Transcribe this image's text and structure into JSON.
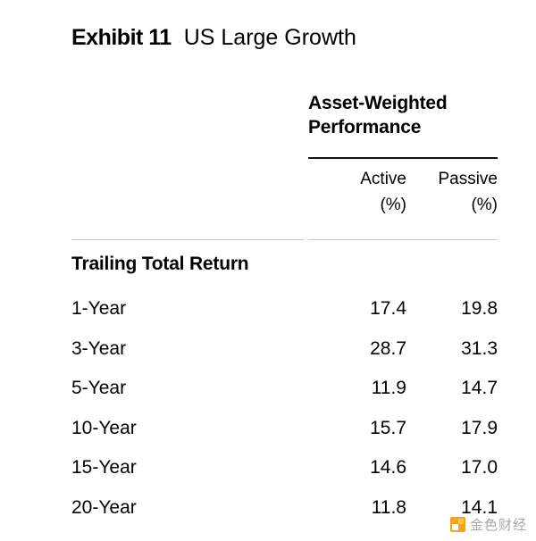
{
  "title": {
    "exhibit": "Exhibit 11",
    "name": "US Large Growth"
  },
  "table": {
    "group_header": "Asset-Weighted Performance",
    "columns": [
      {
        "label": "Active",
        "unit": "(%)"
      },
      {
        "label": "Passive",
        "unit": "(%)"
      }
    ],
    "section": "Trailing Total Return",
    "rows": [
      {
        "label": "1-Year",
        "active": "17.4",
        "passive": "19.8"
      },
      {
        "label": "3-Year",
        "active": "28.7",
        "passive": "31.3"
      },
      {
        "label": "5-Year",
        "active": "11.9",
        "passive": "14.7"
      },
      {
        "label": "10-Year",
        "active": "15.7",
        "passive": "17.9"
      },
      {
        "label": "15-Year",
        "active": "14.6",
        "passive": "17.0"
      },
      {
        "label": "20-Year",
        "active": "11.8",
        "passive": "14.1"
      }
    ]
  },
  "watermark": {
    "text": "金色财经"
  },
  "colors": {
    "text": "#000000",
    "rule_dark": "#111111",
    "rule_light": "#c9c9c9",
    "watermark_orange": "#f9a11b",
    "watermark_gray": "#a6a6a6"
  },
  "chart_data": {
    "type": "table",
    "title": "Exhibit 11 US Large Growth",
    "group_header": "Asset-Weighted Performance",
    "section": "Trailing Total Return",
    "columns": [
      "Active (%)",
      "Passive (%)"
    ],
    "categories": [
      "1-Year",
      "3-Year",
      "5-Year",
      "10-Year",
      "15-Year",
      "20-Year"
    ],
    "series": [
      {
        "name": "Active (%)",
        "values": [
          17.4,
          28.7,
          11.9,
          15.7,
          14.6,
          11.8
        ]
      },
      {
        "name": "Passive (%)",
        "values": [
          19.8,
          31.3,
          14.7,
          17.9,
          17.0,
          14.1
        ]
      }
    ]
  }
}
